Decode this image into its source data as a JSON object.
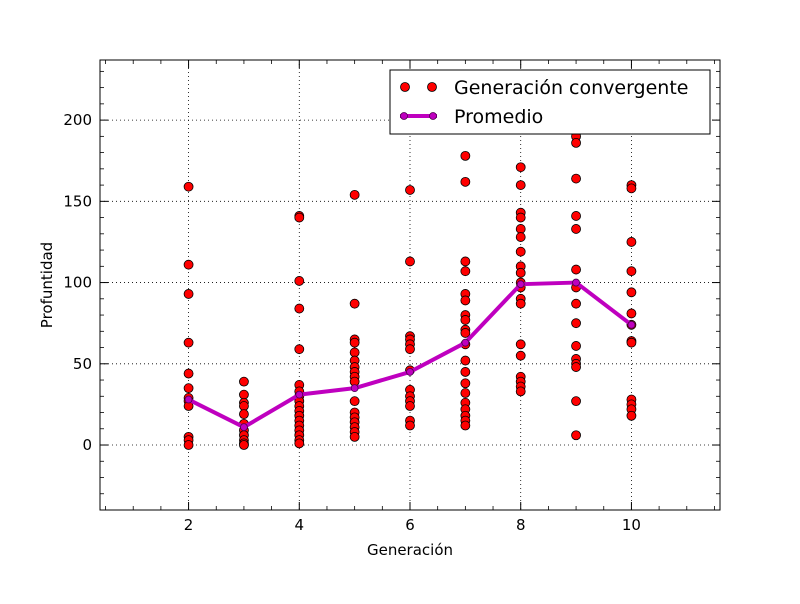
{
  "chart_data": {
    "type": "scatter",
    "xlabel": "Generación",
    "ylabel": "Profuntidad",
    "xlim": [
      0.4,
      11.6
    ],
    "ylim": [
      -40,
      237
    ],
    "xticks": [
      2,
      4,
      6,
      8,
      10
    ],
    "yticks": [
      0,
      50,
      100,
      150,
      200
    ],
    "grid": true,
    "legend_position": "top-right",
    "series": [
      {
        "name": "Generación convergente",
        "kind": "points",
        "color": "#ff0000",
        "points": [
          [
            2,
            159
          ],
          [
            2,
            111
          ],
          [
            2,
            93
          ],
          [
            2,
            63
          ],
          [
            2,
            44
          ],
          [
            2,
            35
          ],
          [
            2,
            29
          ],
          [
            2,
            27
          ],
          [
            2,
            24
          ],
          [
            2,
            5
          ],
          [
            2,
            3
          ],
          [
            2,
            0
          ],
          [
            3,
            39
          ],
          [
            3,
            31
          ],
          [
            3,
            26
          ],
          [
            3,
            24
          ],
          [
            3,
            19
          ],
          [
            3,
            13
          ],
          [
            3,
            9
          ],
          [
            3,
            6
          ],
          [
            3,
            3
          ],
          [
            3,
            1
          ],
          [
            3,
            0
          ],
          [
            4,
            141
          ],
          [
            4,
            140
          ],
          [
            4,
            101
          ],
          [
            4,
            84
          ],
          [
            4,
            59
          ],
          [
            4,
            37
          ],
          [
            4,
            33
          ],
          [
            4,
            30
          ],
          [
            4,
            27
          ],
          [
            4,
            24
          ],
          [
            4,
            21
          ],
          [
            4,
            18
          ],
          [
            4,
            15
          ],
          [
            4,
            12
          ],
          [
            4,
            9
          ],
          [
            4,
            6
          ],
          [
            4,
            3
          ],
          [
            4,
            1
          ],
          [
            5,
            154
          ],
          [
            5,
            87
          ],
          [
            5,
            65
          ],
          [
            5,
            63
          ],
          [
            5,
            57
          ],
          [
            5,
            52
          ],
          [
            5,
            48
          ],
          [
            5,
            45
          ],
          [
            5,
            42
          ],
          [
            5,
            39
          ],
          [
            5,
            27
          ],
          [
            5,
            20
          ],
          [
            5,
            17
          ],
          [
            5,
            14
          ],
          [
            5,
            11
          ],
          [
            5,
            8
          ],
          [
            5,
            5
          ],
          [
            6,
            157
          ],
          [
            6,
            113
          ],
          [
            6,
            67
          ],
          [
            6,
            65
          ],
          [
            6,
            62
          ],
          [
            6,
            59
          ],
          [
            6,
            46
          ],
          [
            6,
            34
          ],
          [
            6,
            30
          ],
          [
            6,
            27
          ],
          [
            6,
            24
          ],
          [
            6,
            15
          ],
          [
            6,
            12
          ],
          [
            7,
            178
          ],
          [
            7,
            162
          ],
          [
            7,
            113
          ],
          [
            7,
            107
          ],
          [
            7,
            93
          ],
          [
            7,
            89
          ],
          [
            7,
            80
          ],
          [
            7,
            77
          ],
          [
            7,
            71
          ],
          [
            7,
            69
          ],
          [
            7,
            62
          ],
          [
            7,
            52
          ],
          [
            7,
            45
          ],
          [
            7,
            38
          ],
          [
            7,
            32
          ],
          [
            7,
            26
          ],
          [
            7,
            22
          ],
          [
            7,
            18
          ],
          [
            7,
            15
          ],
          [
            7,
            12
          ],
          [
            8,
            171
          ],
          [
            8,
            160
          ],
          [
            8,
            143
          ],
          [
            8,
            140
          ],
          [
            8,
            133
          ],
          [
            8,
            128
          ],
          [
            8,
            119
          ],
          [
            8,
            110
          ],
          [
            8,
            106
          ],
          [
            8,
            100
          ],
          [
            8,
            97
          ],
          [
            8,
            90
          ],
          [
            8,
            87
          ],
          [
            8,
            62
          ],
          [
            8,
            55
          ],
          [
            8,
            42
          ],
          [
            8,
            39
          ],
          [
            8,
            36
          ],
          [
            8,
            33
          ],
          [
            9,
            190
          ],
          [
            9,
            186
          ],
          [
            9,
            164
          ],
          [
            9,
            141
          ],
          [
            9,
            133
          ],
          [
            9,
            108
          ],
          [
            9,
            97
          ],
          [
            9,
            87
          ],
          [
            9,
            75
          ],
          [
            9,
            61
          ],
          [
            9,
            53
          ],
          [
            9,
            50
          ],
          [
            9,
            48
          ],
          [
            9,
            27
          ],
          [
            9,
            6
          ],
          [
            10,
            160
          ],
          [
            10,
            158
          ],
          [
            10,
            125
          ],
          [
            10,
            107
          ],
          [
            10,
            94
          ],
          [
            10,
            81
          ],
          [
            10,
            74
          ],
          [
            10,
            64
          ],
          [
            10,
            63
          ],
          [
            10,
            28
          ],
          [
            10,
            25
          ],
          [
            10,
            22
          ],
          [
            10,
            18
          ]
        ]
      },
      {
        "name": "Promedio",
        "kind": "line",
        "color": "#bf00bf",
        "x": [
          2,
          3,
          4,
          5,
          6,
          7,
          8,
          9,
          10
        ],
        "y": [
          28,
          11,
          31,
          35,
          45,
          63,
          99,
          100,
          74
        ]
      }
    ]
  }
}
